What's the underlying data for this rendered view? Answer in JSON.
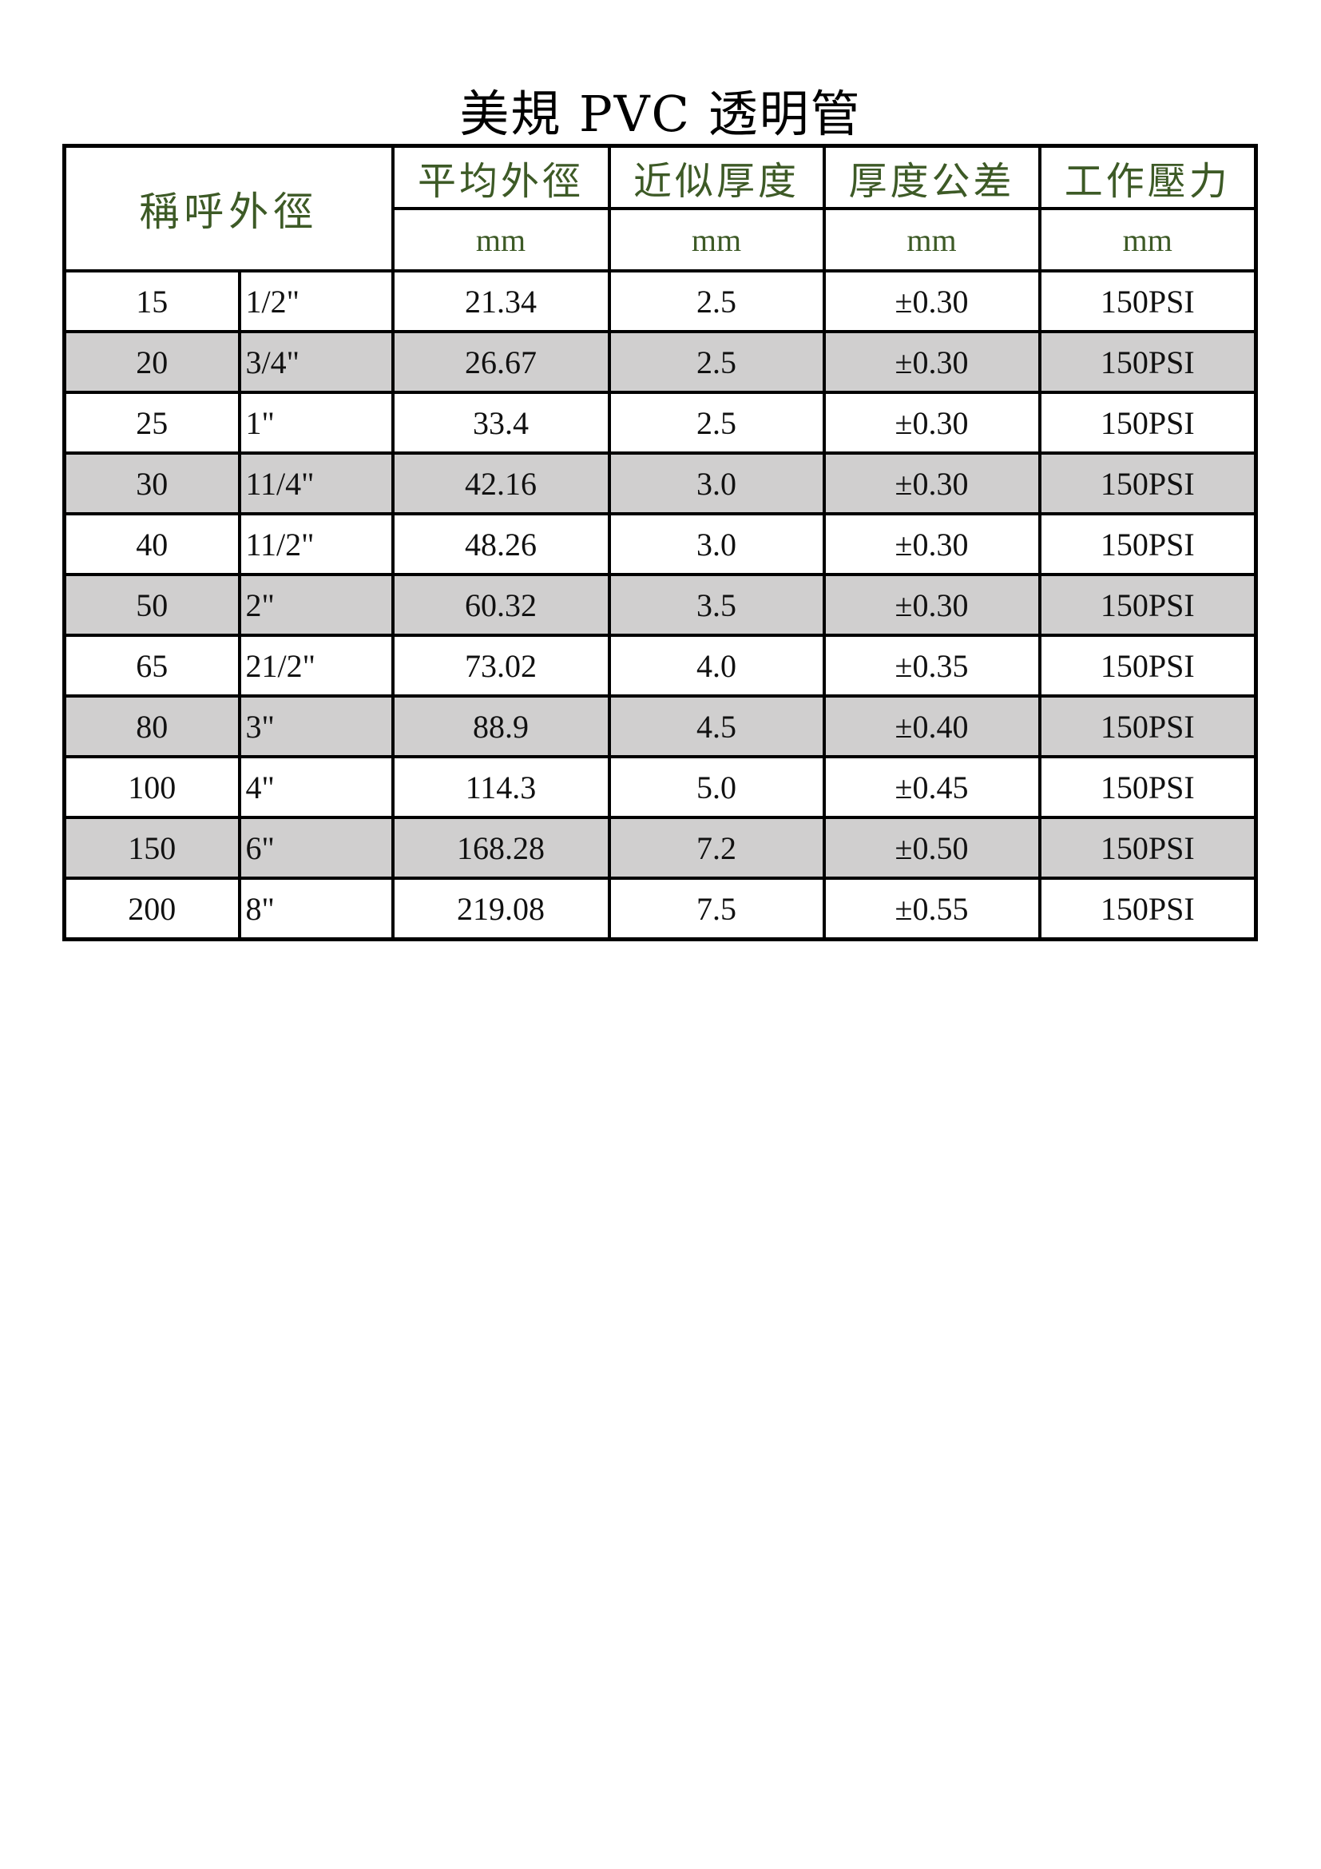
{
  "title": "美規 PVC 透明管",
  "header": {
    "nominal": "稱呼外徑",
    "columns": [
      "平均外徑",
      "近似厚度",
      "厚度公差",
      "工作壓力"
    ],
    "units": [
      "mm",
      "mm",
      "mm",
      "mm"
    ]
  },
  "colors": {
    "header_text": "#3d5a26",
    "alt_row": "#d0cfcf"
  },
  "rows": [
    [
      "15",
      "1/2\"",
      "21.34",
      "2.5",
      "±0.30",
      "150PSI"
    ],
    [
      "20",
      "3/4\"",
      "26.67",
      "2.5",
      "±0.30",
      "150PSI"
    ],
    [
      "25",
      "1\"",
      "33.4",
      "2.5",
      "±0.30",
      "150PSI"
    ],
    [
      "30",
      "11/4\"",
      "42.16",
      "3.0",
      "±0.30",
      "150PSI"
    ],
    [
      "40",
      "11/2\"",
      "48.26",
      "3.0",
      "±0.30",
      "150PSI"
    ],
    [
      "50",
      "2\"",
      "60.32",
      "3.5",
      "±0.30",
      "150PSI"
    ],
    [
      "65",
      "21/2\"",
      "73.02",
      "4.0",
      "±0.35",
      "150PSI"
    ],
    [
      "80",
      "3\"",
      "88.9",
      "4.5",
      "±0.40",
      "150PSI"
    ],
    [
      "100",
      "4\"",
      "114.3",
      "5.0",
      "±0.45",
      "150PSI"
    ],
    [
      "150",
      "6\"",
      "168.28",
      "7.2",
      "±0.50",
      "150PSI"
    ],
    [
      "200",
      "8\"",
      "219.08",
      "7.5",
      "±0.55",
      "150PSI"
    ]
  ]
}
